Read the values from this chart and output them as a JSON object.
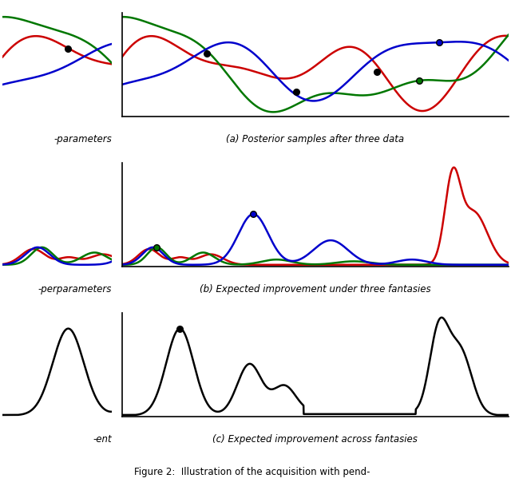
{
  "fig_width": 6.4,
  "fig_height": 6.24,
  "bg_color": "#ffffff",
  "caption_a": "(a) Posterior samples after three data",
  "caption_b": "(b) Expected improvement under three fantasies",
  "caption_c": "(c) Expected improvement across fantasies",
  "figure_caption": "Figure 2:  Illustration of the acquisition with pend-",
  "colors": {
    "red": "#cc0000",
    "green": "#007700",
    "blue": "#0000cc",
    "black": "#000000"
  },
  "left_col_labels": [
    "-parameters",
    "-perparameters",
    "-ent"
  ]
}
